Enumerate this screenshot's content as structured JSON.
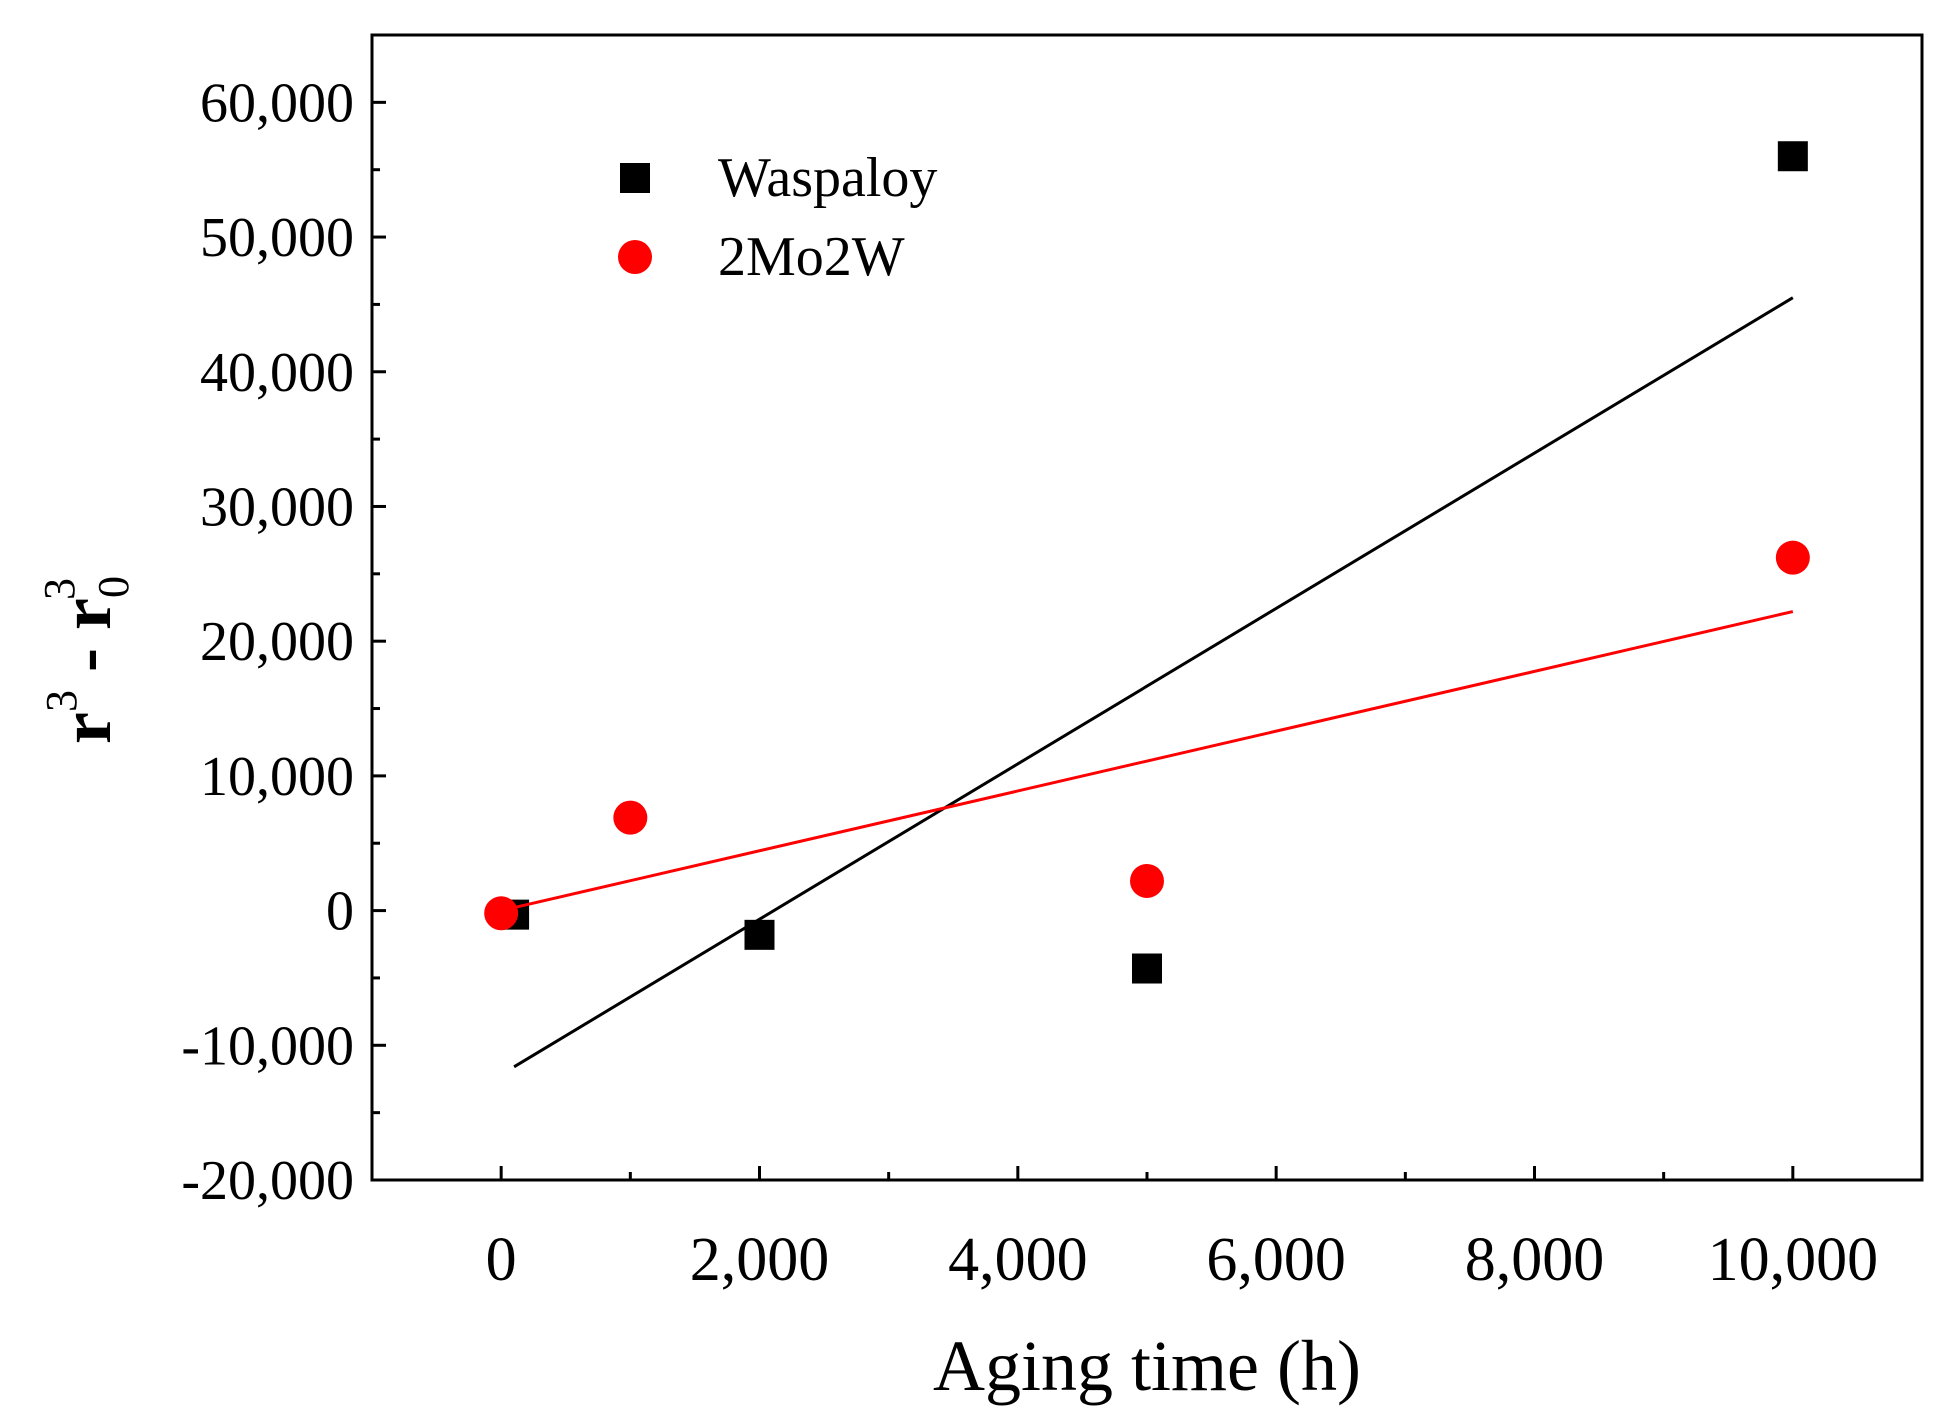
{
  "chart_data": {
    "type": "scatter",
    "title": "",
    "xlabel": "Aging time (h)",
    "ylabel": {
      "base": "r",
      "sup1": "3",
      "minus": " - ",
      "base2": "r",
      "sub": "0",
      "sup2": "3"
    },
    "xlim": [
      -1000,
      11000
    ],
    "ylim": [
      -20000,
      65000
    ],
    "xticks": [
      0,
      2000,
      4000,
      6000,
      8000,
      10000
    ],
    "xtick_labels": [
      "0",
      "2,000",
      "4,000",
      "6,000",
      "8,000",
      "10,000"
    ],
    "xminor": [
      1000,
      3000,
      5000,
      7000,
      9000
    ],
    "yticks": [
      -20000,
      -10000,
      0,
      10000,
      20000,
      30000,
      40000,
      50000,
      60000
    ],
    "ytick_labels": [
      "-20,000",
      "-10,000",
      "0",
      "10,000",
      "20,000",
      "30,000",
      "40,000",
      "50,000",
      "60,000"
    ],
    "yminor": [
      -15000,
      -5000,
      5000,
      15000,
      25000,
      35000,
      45000,
      55000
    ],
    "grid": false,
    "legend": {
      "position": "top-left"
    },
    "series": [
      {
        "name": "Waspaloy",
        "marker": "square",
        "color": "#000000",
        "x": [
          100,
          2000,
          5000,
          10000
        ],
        "y": [
          -300,
          -1800,
          -4300,
          56000
        ],
        "fit": {
          "x": [
            100,
            10000
          ],
          "y": [
            -11600,
            45500
          ]
        }
      },
      {
        "name": "2Mo2W",
        "marker": "circle",
        "color": "#ff0000",
        "x": [
          0,
          1000,
          5000,
          10000
        ],
        "y": [
          -200,
          6900,
          2200,
          26200
        ],
        "fit": {
          "x": [
            0,
            10000
          ],
          "y": [
            0,
            22200
          ]
        }
      }
    ]
  }
}
